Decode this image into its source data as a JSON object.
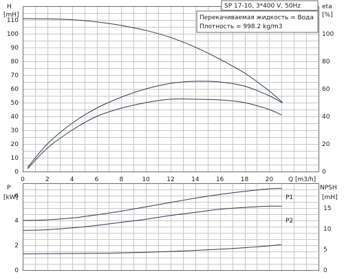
{
  "chart_data": [
    {
      "type": "line",
      "title": "SP 17-10, 3*400 V, 50Hz",
      "notes": [
        "Перекачиваемая жидкость = Вода",
        "Плотность = 998.2 kg/m3"
      ],
      "xlabel": "Q [m3/h]",
      "xlim": [
        0,
        24
      ],
      "x_ticks": [
        0,
        2,
        4,
        6,
        8,
        10,
        12,
        14,
        16,
        18,
        20
      ],
      "ylabel": "H",
      "ylabel_unit": "[mH]",
      "ylim": [
        0,
        120
      ],
      "y_ticks": [
        0,
        10,
        20,
        30,
        40,
        50,
        60,
        70,
        80,
        90,
        100,
        110
      ],
      "y2label": "eta",
      "y2label_unit": "[%]",
      "y2lim": [
        0,
        120
      ],
      "y2_ticks": [
        0,
        20,
        40,
        60,
        80,
        100
      ],
      "grid": true,
      "series": [
        {
          "axis": "left",
          "x": [
            0,
            2,
            4,
            6,
            8,
            10,
            12,
            14,
            16,
            18,
            20,
            21.1
          ],
          "values": [
            111,
            110.8,
            110.2,
            108.6,
            106,
            102.4,
            97.3,
            90.3,
            81.5,
            71.5,
            58.5,
            50
          ]
        },
        {
          "axis": "right",
          "x": [
            0.4,
            2,
            4,
            6,
            8,
            10,
            12,
            14,
            16,
            18,
            20,
            21
          ],
          "values": [
            3,
            20,
            35,
            46,
            54,
            60,
            64,
            65.5,
            65,
            62,
            55,
            50
          ]
        },
        {
          "axis": "right",
          "x": [
            0.4,
            2,
            4,
            6,
            8,
            10,
            12,
            14,
            16,
            18,
            20,
            21
          ],
          "values": [
            2,
            17,
            30,
            40,
            46,
            50,
            52.5,
            52.5,
            52,
            50,
            45,
            41
          ]
        }
      ]
    },
    {
      "type": "line",
      "xlim": [
        0,
        24
      ],
      "ylabel": "P",
      "ylabel_unit": "[kW]",
      "ylim": [
        0,
        7
      ],
      "y_ticks": [
        0,
        2,
        4,
        6
      ],
      "y2label": "NPSH",
      "y2label_unit": "[mH]",
      "y2lim": [
        0,
        21
      ],
      "y2_ticks": [
        0,
        5,
        10,
        15
      ],
      "grid": true,
      "series": [
        {
          "name": "P1",
          "axis": "left",
          "x": [
            0,
            2,
            4,
            6,
            8,
            10,
            12,
            14,
            16,
            18,
            20,
            21
          ],
          "values": [
            4.0,
            4.05,
            4.2,
            4.45,
            4.75,
            5.1,
            5.45,
            5.8,
            6.1,
            6.35,
            6.55,
            6.6
          ]
        },
        {
          "name": "P2",
          "axis": "left",
          "x": [
            0,
            2,
            4,
            6,
            8,
            10,
            12,
            14,
            16,
            18,
            20,
            21
          ],
          "values": [
            3.2,
            3.25,
            3.4,
            3.6,
            3.85,
            4.1,
            4.4,
            4.65,
            4.9,
            5.05,
            5.15,
            5.15
          ]
        },
        {
          "axis": "right",
          "x": [
            0,
            2,
            4,
            6,
            8,
            10,
            12,
            14,
            16,
            18,
            20,
            21
          ],
          "values": [
            3.9,
            3.95,
            4.0,
            4.05,
            4.15,
            4.3,
            4.5,
            4.75,
            5.05,
            5.4,
            5.85,
            6.15
          ]
        }
      ]
    }
  ],
  "colors": {
    "curve": "#2b3550",
    "grid": "#c6c6c6",
    "frame": "#6a6a6a"
  }
}
